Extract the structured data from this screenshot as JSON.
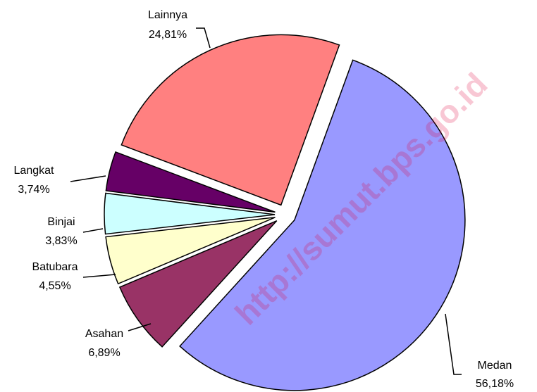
{
  "chart_data": {
    "type": "pie",
    "categories": [
      "Medan",
      "Asahan",
      "Batubara",
      "Binjai",
      "Langkat",
      "Lainnya"
    ],
    "values": [
      56.18,
      6.89,
      4.55,
      3.83,
      3.74,
      24.81
    ],
    "value_labels": [
      "56,18%",
      "6,89%",
      "4,55%",
      "3,83%",
      "3,74%",
      "24,81%"
    ],
    "colors": [
      "#9999ff",
      "#993366",
      "#ffffcc",
      "#ccffff",
      "#660066",
      "#ff8080"
    ],
    "watermark": "http://sumut.bps.go.id"
  }
}
